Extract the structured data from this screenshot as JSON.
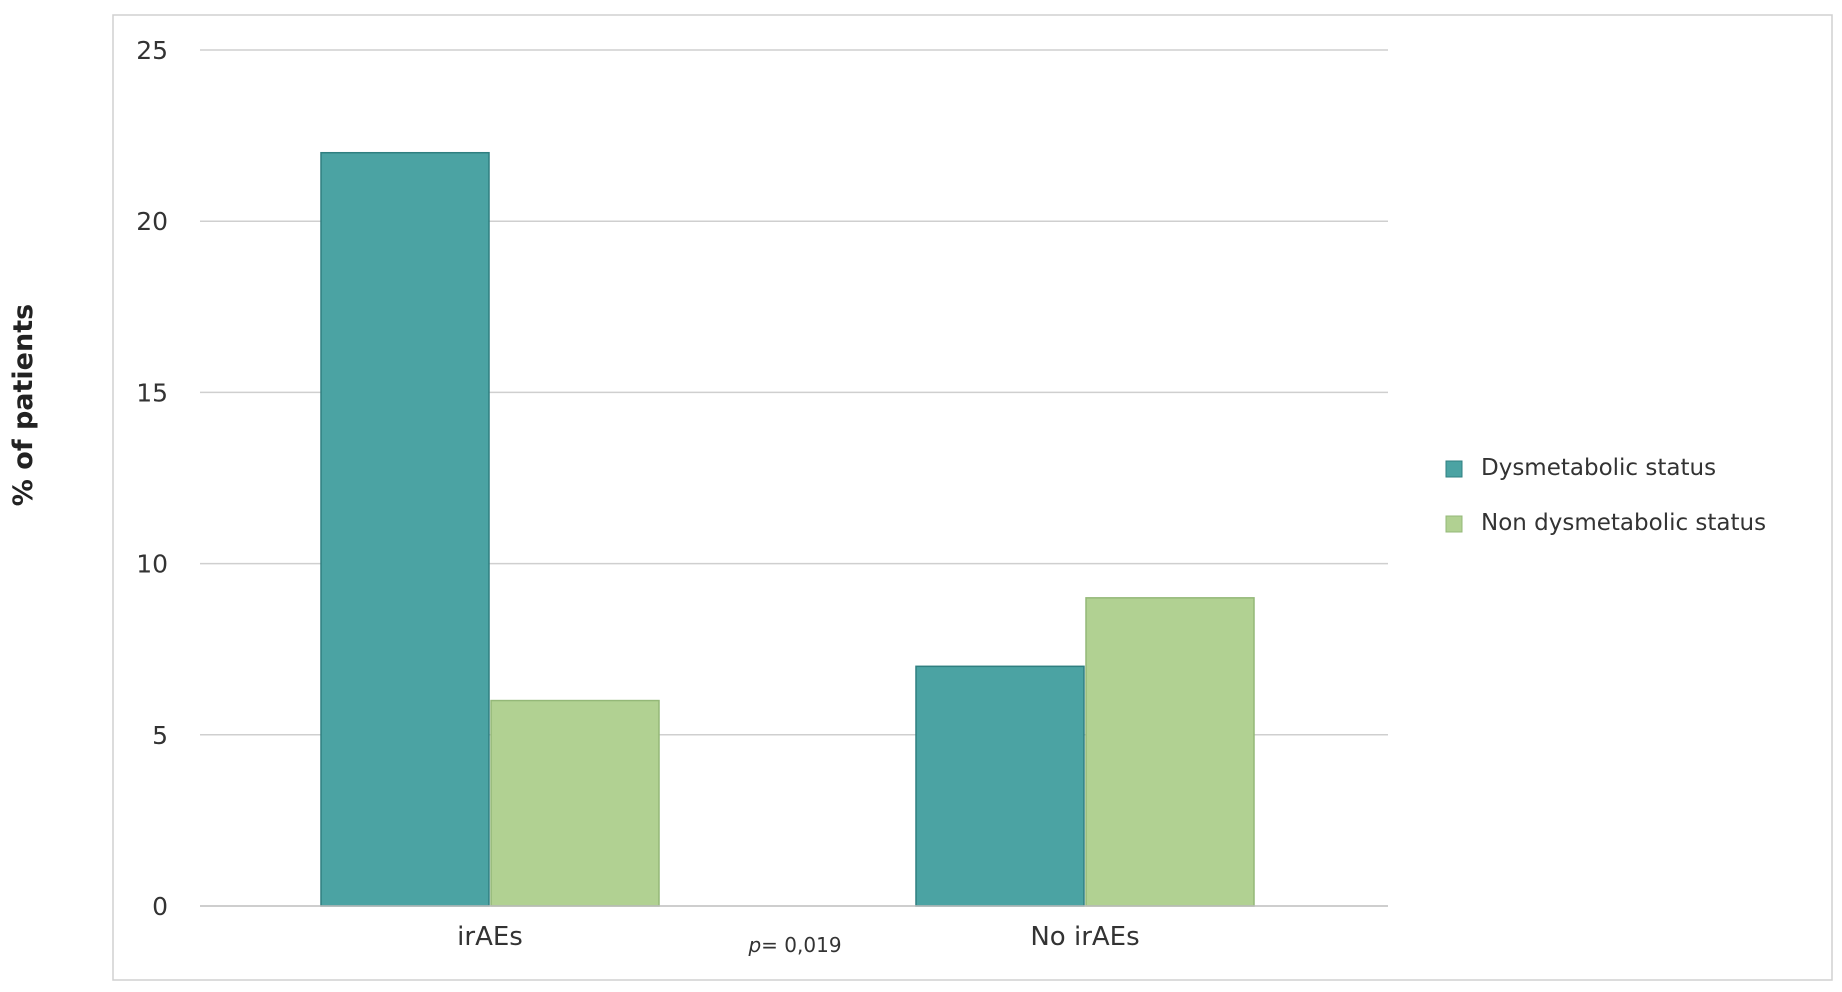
{
  "chart_data": {
    "type": "bar",
    "categories": [
      "irAEs",
      "No irAEs"
    ],
    "series": [
      {
        "name": "Dysmetabolic status",
        "values": [
          22,
          7
        ],
        "color": "#4ba3a3"
      },
      {
        "name": "Non dysmetabolic status",
        "values": [
          6,
          9
        ],
        "color": "#b1d192"
      }
    ],
    "title": "",
    "xlabel": "",
    "ylabel": "% of patients",
    "ylim": [
      0,
      25
    ],
    "yticks": [
      "0",
      "5",
      "10",
      "15",
      "20",
      "25"
    ],
    "grid": true,
    "legend_position": "right",
    "annotation": {
      "p_symbol": "p",
      "p_text": "= 0,019"
    }
  }
}
